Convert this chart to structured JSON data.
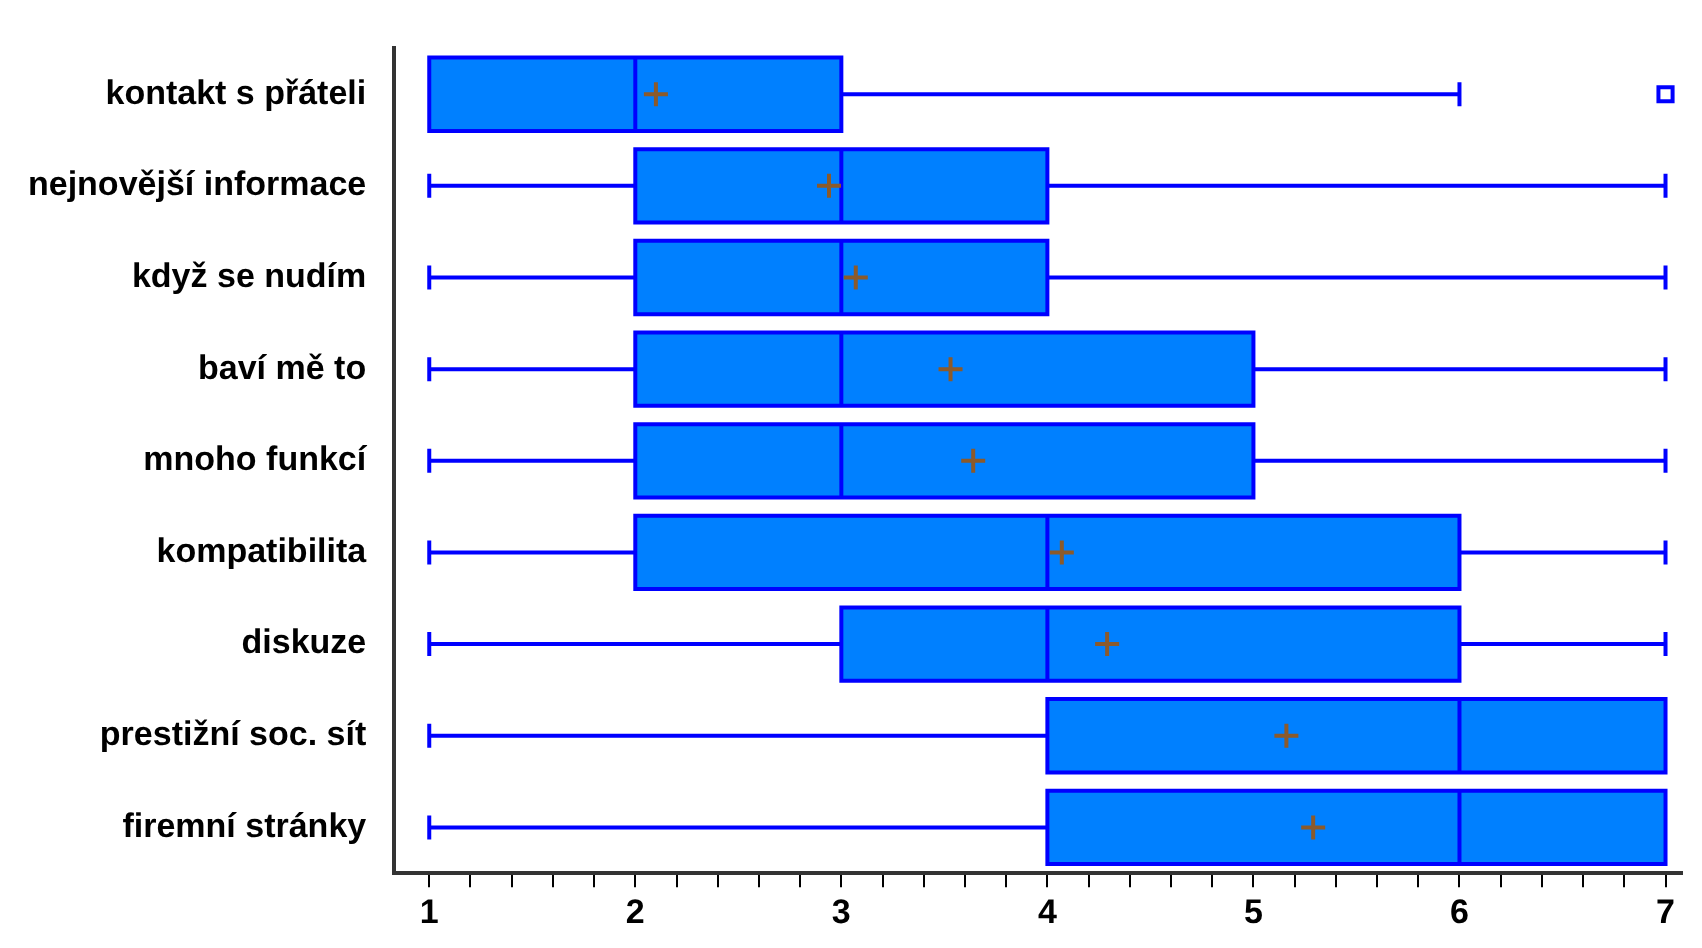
{
  "chart_data": {
    "type": "box",
    "orientation": "horizontal",
    "color": "#0080ff",
    "grid": false,
    "legend": false,
    "categories": [
      "kontakt s přáteli",
      "nejnovější informace",
      "když se nudím",
      "baví mě to",
      "mnoho funkcí",
      "kompatibilita",
      "diskuze",
      "prestižní soc. sít",
      "firemní stránky"
    ],
    "boxes": [
      {
        "low": 1,
        "q1": 1,
        "median": 2,
        "q3": 3,
        "high": 6,
        "mean": 2.1,
        "outliers": [
          7
        ]
      },
      {
        "low": 1,
        "q1": 2,
        "median": 3,
        "q3": 4,
        "high": 7,
        "mean": 2.94
      },
      {
        "low": 1,
        "q1": 2,
        "median": 3,
        "q3": 4,
        "high": 7,
        "mean": 3.07
      },
      {
        "low": 1,
        "q1": 2,
        "median": 3,
        "q3": 5,
        "high": 7,
        "mean": 3.53
      },
      {
        "low": 1,
        "q1": 2,
        "median": 3,
        "q3": 5,
        "high": 7,
        "mean": 3.64
      },
      {
        "low": 1,
        "q1": 2,
        "median": 4,
        "q3": 6,
        "high": 7,
        "mean": 4.07
      },
      {
        "low": 1,
        "q1": 3,
        "median": 4,
        "q3": 6,
        "high": 7,
        "mean": 4.29
      },
      {
        "low": 1,
        "q1": 4,
        "median": 6,
        "q3": 7,
        "high": 7,
        "mean": 5.16
      },
      {
        "low": 1,
        "q1": 4,
        "median": 6,
        "q3": 7,
        "high": 7,
        "mean": 5.29
      }
    ],
    "xlim": [
      0.83,
      7.08
    ],
    "xticks": [
      1,
      {
        "value": 1.2,
        "label": null
      },
      {
        "value": 1.4,
        "label": null
      },
      {
        "value": 1.6,
        "label": null
      },
      {
        "value": 1.8,
        "label": null
      },
      2,
      {
        "value": 2.2,
        "label": null
      },
      {
        "value": 2.4,
        "label": null
      },
      {
        "value": 2.6,
        "label": null
      },
      {
        "value": 2.8,
        "label": null
      },
      3,
      {
        "value": 3.2,
        "label": null
      },
      {
        "value": 3.4,
        "label": null
      },
      {
        "value": 3.6,
        "label": null
      },
      {
        "value": 3.8,
        "label": null
      },
      4,
      {
        "value": 4.2,
        "label": null
      },
      {
        "value": 4.4,
        "label": null
      },
      {
        "value": 4.6,
        "label": null
      },
      {
        "value": 4.8,
        "label": null
      },
      5,
      {
        "value": 5.2,
        "label": null
      },
      {
        "value": 5.4,
        "label": null
      },
      {
        "value": 5.6,
        "label": null
      },
      {
        "value": 5.8,
        "label": null
      },
      6,
      {
        "value": 6.2,
        "label": null
      },
      {
        "value": 6.4,
        "label": null
      },
      {
        "value": 6.6,
        "label": null
      },
      {
        "value": 6.8,
        "label": null
      },
      7
    ]
  }
}
